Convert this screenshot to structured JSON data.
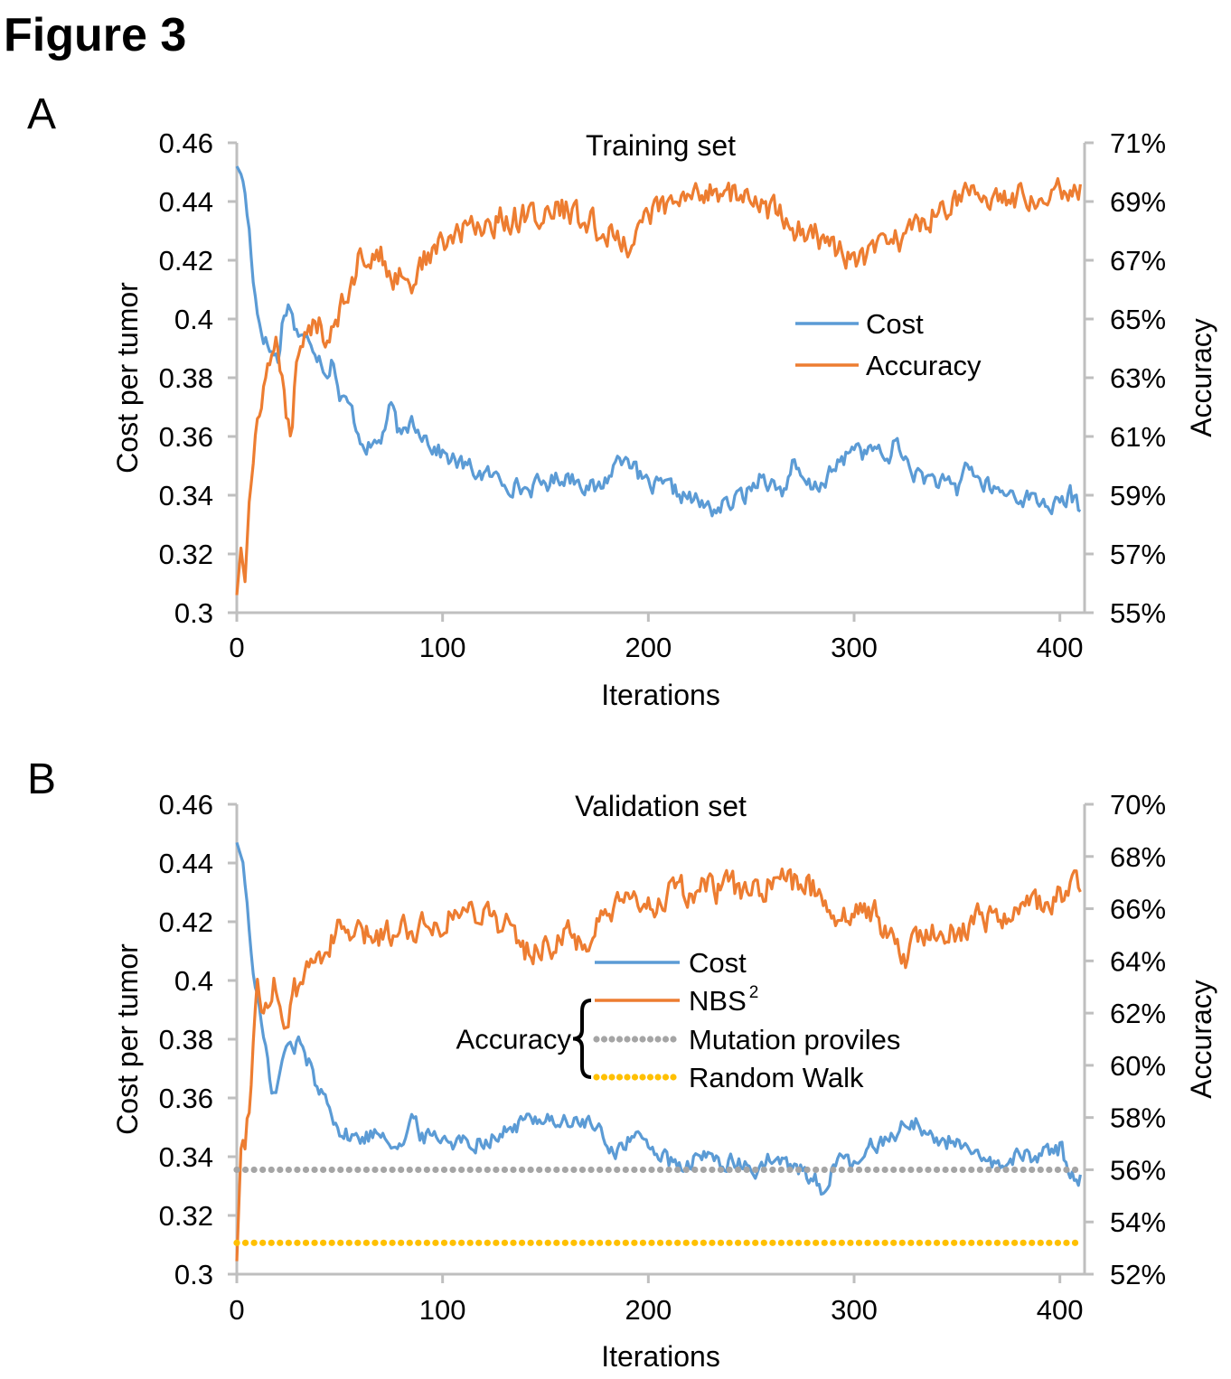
{
  "figure_title": "Figure 3",
  "chart_data": [
    {
      "panel_label": "A",
      "type": "line",
      "title": "Training set",
      "xlabel": "Iterations",
      "ylabel": "Cost per tumor",
      "y2label": "Accuracy",
      "xlim": [
        0,
        412
      ],
      "ylim": [
        0.3,
        0.46
      ],
      "y2lim": [
        55,
        71
      ],
      "x_ticks": [
        "0",
        "100",
        "200",
        "300",
        "400"
      ],
      "y_ticks": [
        "0.3",
        "0.32",
        "0.34",
        "0.36",
        "0.38",
        "0.4",
        "0.42",
        "0.44",
        "0.46"
      ],
      "y2_ticks": [
        "55%",
        "57%",
        "59%",
        "61%",
        "63%",
        "65%",
        "67%",
        "69%",
        "71%"
      ],
      "grid": false,
      "legend_position": "center-right",
      "legend": [
        "Cost",
        "Accuracy"
      ],
      "series": [
        {
          "name": "Cost",
          "axis": "left",
          "color": "#5b9bd5",
          "x": [
            0,
            3,
            6,
            8,
            10,
            12,
            15,
            18,
            20,
            22,
            24,
            26,
            28,
            30,
            33,
            36,
            40,
            44,
            47,
            50,
            55,
            60,
            65,
            70,
            75,
            80,
            85,
            90,
            95,
            100,
            110,
            120,
            130,
            140,
            150,
            160,
            170,
            175,
            180,
            185,
            190,
            195,
            200,
            210,
            220,
            225,
            230,
            235,
            240,
            250,
            255,
            260,
            265,
            270,
            275,
            280,
            290,
            295,
            300,
            305,
            310,
            315,
            320,
            325,
            330,
            340,
            350,
            355,
            360,
            370,
            380,
            390,
            400,
            405,
            410
          ],
          "values": [
            0.452,
            0.448,
            0.43,
            0.415,
            0.402,
            0.397,
            0.391,
            0.388,
            0.386,
            0.398,
            0.404,
            0.405,
            0.398,
            0.395,
            0.392,
            0.393,
            0.388,
            0.382,
            0.387,
            0.373,
            0.37,
            0.36,
            0.356,
            0.359,
            0.37,
            0.358,
            0.366,
            0.362,
            0.357,
            0.354,
            0.35,
            0.347,
            0.345,
            0.342,
            0.344,
            0.347,
            0.344,
            0.341,
            0.346,
            0.352,
            0.355,
            0.346,
            0.343,
            0.342,
            0.339,
            0.337,
            0.335,
            0.336,
            0.337,
            0.342,
            0.348,
            0.344,
            0.341,
            0.35,
            0.344,
            0.342,
            0.348,
            0.352,
            0.358,
            0.354,
            0.356,
            0.351,
            0.358,
            0.352,
            0.347,
            0.345,
            0.341,
            0.352,
            0.345,
            0.341,
            0.34,
            0.338,
            0.336,
            0.34,
            0.335
          ]
        },
        {
          "name": "Accuracy",
          "axis": "right",
          "color": "#ed7d31",
          "x": [
            0,
            2,
            4,
            6,
            8,
            10,
            12,
            15,
            18,
            20,
            22,
            24,
            26,
            28,
            30,
            33,
            36,
            40,
            44,
            47,
            50,
            55,
            60,
            65,
            70,
            75,
            80,
            85,
            90,
            95,
            100,
            110,
            120,
            130,
            140,
            150,
            160,
            170,
            180,
            190,
            195,
            200,
            210,
            220,
            230,
            240,
            250,
            260,
            270,
            280,
            290,
            300,
            305,
            310,
            320,
            330,
            340,
            350,
            360,
            370,
            380,
            390,
            395,
            400,
            405,
            410
          ],
          "values": [
            55.6,
            57.2,
            56.2,
            58.6,
            59.8,
            61.2,
            62.4,
            63.3,
            63.8,
            64.1,
            63.3,
            61.2,
            60.9,
            62.5,
            63.6,
            64.1,
            64.6,
            64.9,
            64.4,
            65.0,
            65.4,
            66.3,
            67.1,
            67.3,
            67.1,
            66.2,
            66.7,
            66.2,
            66.9,
            67.3,
            67.5,
            68.0,
            68.2,
            68.4,
            68.5,
            68.6,
            68.7,
            68.3,
            67.9,
            67.6,
            68.1,
            68.6,
            68.8,
            69.1,
            69.5,
            69.3,
            69.0,
            68.7,
            68.1,
            67.9,
            67.4,
            67.0,
            66.8,
            67.3,
            67.7,
            68.1,
            68.7,
            69.2,
            69.0,
            69.3,
            69.1,
            69.4,
            69.5,
            69.6,
            69.3,
            69.5
          ]
        }
      ]
    },
    {
      "panel_label": "B",
      "type": "line",
      "title": "Validation set",
      "xlabel": "Iterations",
      "ylabel": "Cost per tumor",
      "y2label": "Accuracy",
      "xlim": [
        0,
        412
      ],
      "ylim": [
        0.3,
        0.46
      ],
      "y2lim": [
        52,
        70
      ],
      "x_ticks": [
        "0",
        "100",
        "200",
        "300",
        "400"
      ],
      "y_ticks": [
        "0.3",
        "0.32",
        "0.34",
        "0.36",
        "0.38",
        "0.4",
        "0.42",
        "0.44",
        "0.46"
      ],
      "y2_ticks": [
        "52%",
        "54%",
        "56%",
        "58%",
        "60%",
        "62%",
        "64%",
        "66%",
        "68%",
        "70%"
      ],
      "grid": false,
      "legend_position": "center",
      "legend": [
        "Cost",
        "NBS",
        "Mutation proviles",
        "Random Walk"
      ],
      "legend_superscript": "2",
      "legend_group_label": "Accuracy",
      "series": [
        {
          "name": "Cost",
          "axis": "left",
          "color": "#5b9bd5",
          "x": [
            0,
            3,
            6,
            8,
            10,
            12,
            15,
            18,
            20,
            22,
            25,
            28,
            30,
            35,
            40,
            45,
            50,
            60,
            70,
            80,
            85,
            90,
            100,
            110,
            120,
            130,
            140,
            150,
            160,
            170,
            180,
            185,
            190,
            200,
            210,
            215,
            220,
            230,
            240,
            250,
            260,
            270,
            280,
            285,
            290,
            300,
            310,
            320,
            330,
            340,
            350,
            360,
            370,
            380,
            390,
            400,
            405,
            410
          ],
          "values": [
            0.447,
            0.44,
            0.42,
            0.4,
            0.395,
            0.385,
            0.37,
            0.362,
            0.365,
            0.372,
            0.378,
            0.376,
            0.38,
            0.372,
            0.362,
            0.36,
            0.348,
            0.346,
            0.349,
            0.344,
            0.352,
            0.347,
            0.347,
            0.345,
            0.346,
            0.348,
            0.352,
            0.354,
            0.351,
            0.352,
            0.345,
            0.342,
            0.346,
            0.345,
            0.338,
            0.335,
            0.338,
            0.34,
            0.338,
            0.335,
            0.339,
            0.336,
            0.334,
            0.327,
            0.338,
            0.337,
            0.344,
            0.349,
            0.352,
            0.345,
            0.346,
            0.338,
            0.337,
            0.34,
            0.341,
            0.343,
            0.336,
            0.333
          ]
        },
        {
          "name": "NBS",
          "axis": "right",
          "color": "#ed7d31",
          "x": [
            0,
            2,
            4,
            6,
            8,
            10,
            12,
            15,
            18,
            20,
            22,
            25,
            28,
            30,
            35,
            40,
            45,
            50,
            60,
            70,
            80,
            90,
            100,
            110,
            120,
            130,
            140,
            150,
            160,
            170,
            180,
            190,
            200,
            210,
            220,
            230,
            240,
            250,
            260,
            270,
            280,
            285,
            290,
            300,
            310,
            320,
            325,
            330,
            340,
            350,
            360,
            370,
            380,
            390,
            400,
            405,
            410
          ],
          "values": [
            52.5,
            56.8,
            57.2,
            58.6,
            61.2,
            63.0,
            62.2,
            62.6,
            63.3,
            62.5,
            62.0,
            61.5,
            62.6,
            62.9,
            63.7,
            64.3,
            64.7,
            65.1,
            64.9,
            65.0,
            65.3,
            65.4,
            65.6,
            65.9,
            66.0,
            65.4,
            64.4,
            64.6,
            64.9,
            64.7,
            65.7,
            66.1,
            66.2,
            66.5,
            66.6,
            66.7,
            66.8,
            66.6,
            66.9,
            67.0,
            66.8,
            66.6,
            65.8,
            65.8,
            65.9,
            64.6,
            64.1,
            64.8,
            65.4,
            65.1,
            65.6,
            65.8,
            66.0,
            66.2,
            66.4,
            66.6,
            67.0
          ]
        },
        {
          "name": "Mutation proviles",
          "axis": "right",
          "color": "#a5a5a5",
          "x": [
            0,
            410
          ],
          "values": [
            56.0,
            56.0
          ]
        },
        {
          "name": "Random Walk",
          "axis": "right",
          "color": "#ffc000",
          "x": [
            0,
            410
          ],
          "values": [
            53.2,
            53.2
          ]
        }
      ]
    }
  ]
}
